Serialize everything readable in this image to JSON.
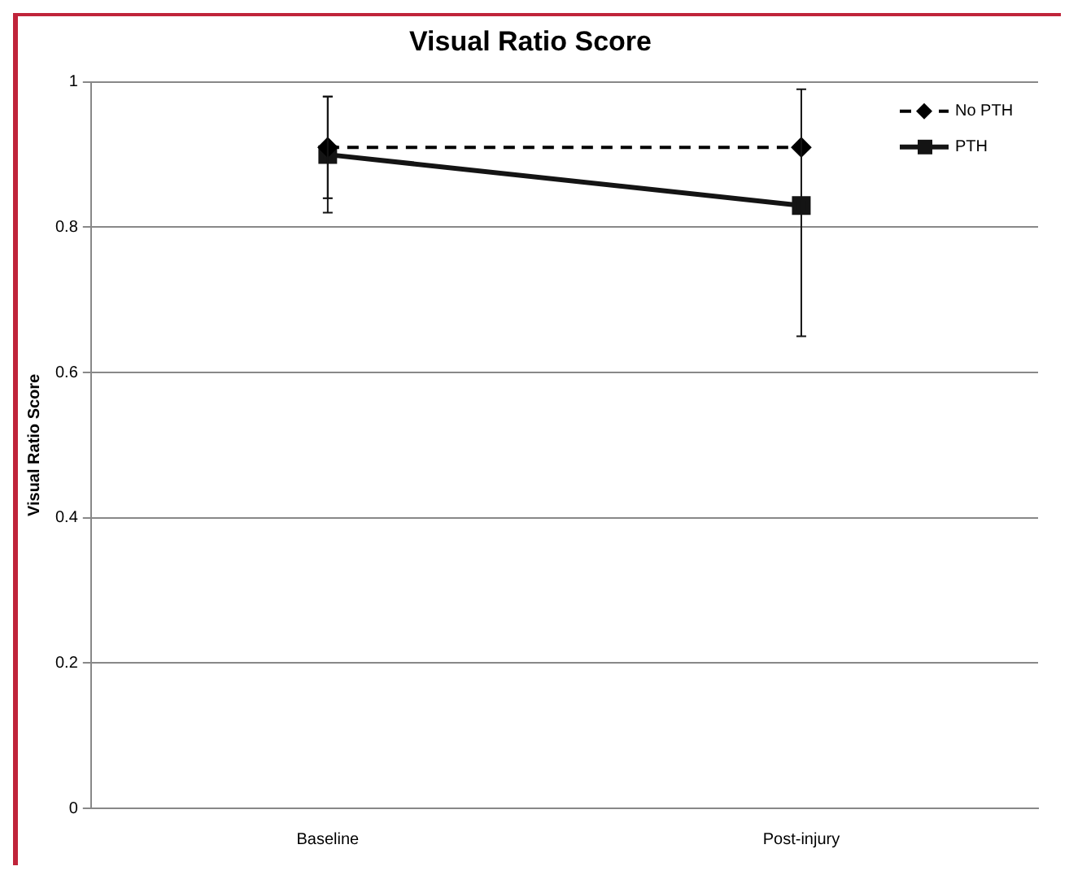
{
  "chart_data": {
    "type": "line",
    "title": "Visual Ratio Score",
    "ylabel": "Visual Ratio Score",
    "categories": [
      "Baseline",
      "Post-injury"
    ],
    "series": [
      {
        "name": "No PTH",
        "color": "#000000",
        "values": [
          0.91,
          0.91
        ],
        "marker": "diamond",
        "line_style": "dashed",
        "errors": [
          [
            0.84,
            0.98
          ],
          null
        ]
      },
      {
        "name": "PTH",
        "color": "#141414",
        "values": [
          0.9,
          0.83
        ],
        "marker": "square",
        "line_style": "solid",
        "errors": [
          [
            0.82,
            0.98
          ],
          [
            0.65,
            0.99
          ]
        ]
      }
    ],
    "ylim": [
      0,
      1
    ],
    "yticks": [
      0,
      0.2,
      0.4,
      0.6,
      0.8,
      1
    ],
    "grid": "y",
    "legend": "top right"
  }
}
